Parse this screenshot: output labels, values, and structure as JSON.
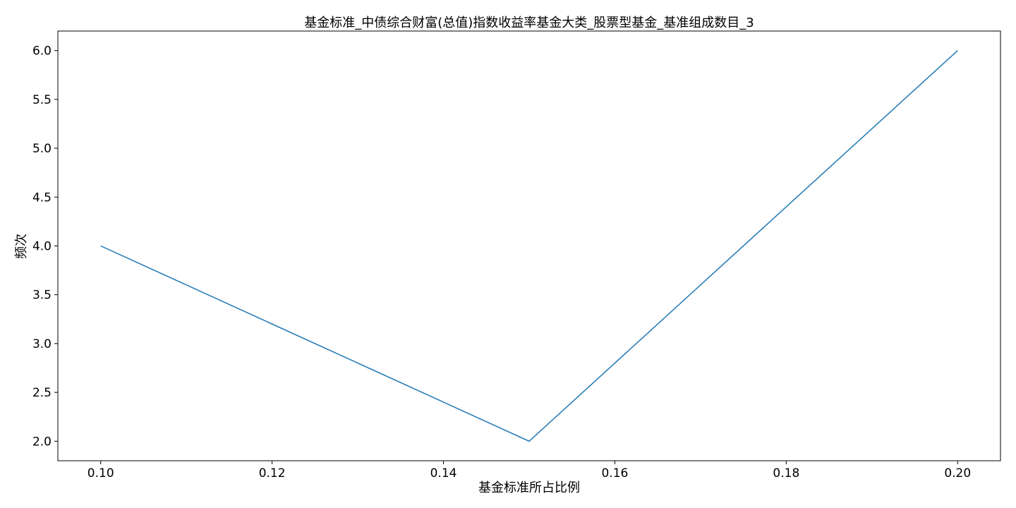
{
  "chart_data": {
    "type": "line",
    "title": "基金标准_中债综合财富(总值)指数收益率基金大类_股票型基金_基准组成数目_3",
    "xlabel": "基金标准所占比例",
    "ylabel": "频次",
    "x": [
      0.1,
      0.15,
      0.2
    ],
    "series": [
      {
        "values": [
          4,
          2,
          6
        ]
      }
    ],
    "xlim": [
      0.095,
      0.205
    ],
    "ylim": [
      1.8,
      6.2
    ],
    "xticks": [
      0.1,
      0.12,
      0.14,
      0.16,
      0.18,
      0.2
    ],
    "xtick_labels": [
      "0.10",
      "0.12",
      "0.14",
      "0.16",
      "0.18",
      "0.20"
    ],
    "yticks": [
      2.0,
      2.5,
      3.0,
      3.5,
      4.0,
      4.5,
      5.0,
      5.5,
      6.0
    ],
    "ytick_labels": [
      "2.0",
      "2.5",
      "3.0",
      "3.5",
      "4.0",
      "4.5",
      "5.0",
      "5.5",
      "6.0"
    ],
    "grid": false,
    "legend": "none",
    "colors": {
      "line": "#1f77b4",
      "axes": "#000000",
      "background": "#ffffff"
    }
  }
}
